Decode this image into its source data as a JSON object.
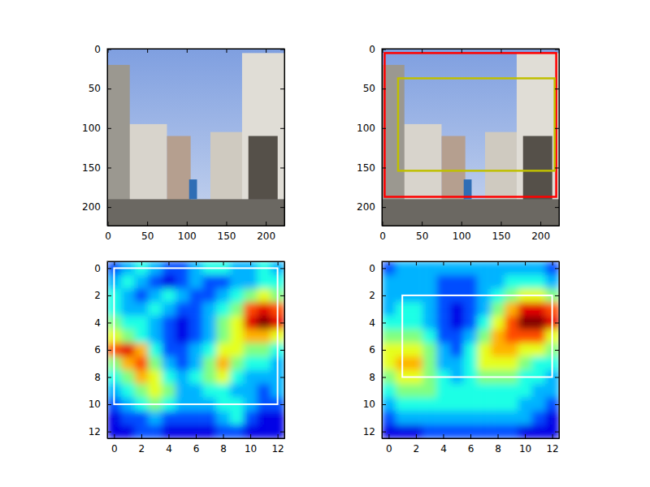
{
  "chart_data": [
    {
      "type": "image",
      "xlim": [
        -0.5,
        223.5
      ],
      "ylim": [
        223.5,
        -0.5
      ],
      "xticks": [
        0,
        50,
        100,
        150,
        200
      ],
      "yticks": [
        0,
        50,
        100,
        150,
        200
      ],
      "boxes": []
    },
    {
      "type": "image",
      "xlim": [
        -0.5,
        223.5
      ],
      "ylim": [
        223.5,
        -0.5
      ],
      "xticks": [
        0,
        50,
        100,
        150,
        200
      ],
      "yticks": [
        0,
        50,
        100,
        150,
        200
      ],
      "boxes": [
        {
          "color": "#ff0000",
          "x0": 3,
          "y0": 5,
          "x1": 220,
          "y1": 187
        },
        {
          "color": "#bfbf00",
          "x0": 20,
          "y0": 37,
          "x1": 218,
          "y1": 154
        }
      ]
    },
    {
      "type": "heatmap",
      "xlim": [
        -0.5,
        12.5
      ],
      "ylim": [
        12.5,
        -0.5
      ],
      "xticks": [
        0,
        2,
        4,
        6,
        8,
        10,
        12
      ],
      "yticks": [
        0,
        2,
        4,
        6,
        8,
        10,
        12
      ],
      "zlim": [
        0,
        1
      ],
      "cells": [
        [
          0.2,
          0.3,
          0.4,
          0.3,
          0.2,
          0.2,
          0.3,
          0.4,
          0.4,
          0.3,
          0.3,
          0.4,
          0.3
        ],
        [
          0.3,
          0.4,
          0.3,
          0.2,
          0.1,
          0.2,
          0.3,
          0.2,
          0.2,
          0.3,
          0.3,
          0.4,
          0.4
        ],
        [
          0.4,
          0.3,
          0.2,
          0.3,
          0.4,
          0.3,
          0.2,
          0.2,
          0.3,
          0.4,
          0.5,
          0.6,
          0.5
        ],
        [
          0.4,
          0.3,
          0.3,
          0.4,
          0.3,
          0.2,
          0.2,
          0.3,
          0.4,
          0.5,
          0.8,
          0.9,
          0.8
        ],
        [
          0.5,
          0.4,
          0.4,
          0.3,
          0.2,
          0.1,
          0.2,
          0.3,
          0.5,
          0.6,
          0.9,
          1.0,
          0.9
        ],
        [
          0.6,
          0.5,
          0.4,
          0.3,
          0.2,
          0.1,
          0.2,
          0.3,
          0.5,
          0.6,
          0.7,
          0.7,
          0.6
        ],
        [
          0.8,
          0.9,
          0.7,
          0.4,
          0.2,
          0.2,
          0.3,
          0.4,
          0.6,
          0.6,
          0.5,
          0.5,
          0.4
        ],
        [
          0.5,
          0.7,
          0.8,
          0.5,
          0.3,
          0.2,
          0.3,
          0.5,
          0.7,
          0.5,
          0.4,
          0.4,
          0.3
        ],
        [
          0.4,
          0.5,
          0.7,
          0.6,
          0.4,
          0.3,
          0.4,
          0.5,
          0.6,
          0.4,
          0.3,
          0.3,
          0.3
        ],
        [
          0.3,
          0.4,
          0.5,
          0.6,
          0.5,
          0.3,
          0.3,
          0.4,
          0.4,
          0.3,
          0.3,
          0.2,
          0.3
        ],
        [
          0.2,
          0.3,
          0.4,
          0.5,
          0.4,
          0.3,
          0.3,
          0.3,
          0.4,
          0.4,
          0.3,
          0.2,
          0.2
        ],
        [
          0.1,
          0.2,
          0.2,
          0.3,
          0.2,
          0.2,
          0.2,
          0.2,
          0.3,
          0.4,
          0.2,
          0.1,
          0.1
        ],
        [
          0.1,
          0.1,
          0.2,
          0.2,
          0.1,
          0.1,
          0.1,
          0.1,
          0.2,
          0.2,
          0.1,
          0.1,
          0.1
        ]
      ],
      "boxes": [
        {
          "color": "#ffffff",
          "x0": 0,
          "y0": 0,
          "x1": 12,
          "y1": 10
        }
      ]
    },
    {
      "type": "heatmap",
      "xlim": [
        -0.5,
        12.5
      ],
      "ylim": [
        12.5,
        -0.5
      ],
      "xticks": [
        0,
        2,
        4,
        6,
        8,
        10,
        12
      ],
      "yticks": [
        0,
        2,
        4,
        6,
        8,
        10,
        12
      ],
      "zlim": [
        0,
        1
      ],
      "cells": [
        [
          0.2,
          0.3,
          0.3,
          0.3,
          0.3,
          0.3,
          0.3,
          0.3,
          0.3,
          0.3,
          0.3,
          0.3,
          0.2
        ],
        [
          0.3,
          0.3,
          0.3,
          0.3,
          0.2,
          0.2,
          0.2,
          0.3,
          0.3,
          0.4,
          0.4,
          0.4,
          0.3
        ],
        [
          0.3,
          0.3,
          0.3,
          0.3,
          0.2,
          0.2,
          0.2,
          0.3,
          0.4,
          0.5,
          0.6,
          0.6,
          0.5
        ],
        [
          0.3,
          0.4,
          0.4,
          0.3,
          0.2,
          0.1,
          0.2,
          0.3,
          0.5,
          0.7,
          0.9,
          0.9,
          0.8
        ],
        [
          0.4,
          0.4,
          0.4,
          0.3,
          0.2,
          0.1,
          0.2,
          0.4,
          0.6,
          0.8,
          1.0,
          1.0,
          0.9
        ],
        [
          0.5,
          0.5,
          0.5,
          0.4,
          0.2,
          0.2,
          0.3,
          0.5,
          0.7,
          0.8,
          0.8,
          0.8,
          0.6
        ],
        [
          0.6,
          0.6,
          0.6,
          0.5,
          0.3,
          0.2,
          0.4,
          0.6,
          0.7,
          0.7,
          0.6,
          0.6,
          0.5
        ],
        [
          0.6,
          0.7,
          0.7,
          0.5,
          0.3,
          0.3,
          0.4,
          0.6,
          0.6,
          0.6,
          0.5,
          0.4,
          0.4
        ],
        [
          0.5,
          0.6,
          0.6,
          0.5,
          0.4,
          0.3,
          0.4,
          0.5,
          0.5,
          0.5,
          0.4,
          0.4,
          0.3
        ],
        [
          0.4,
          0.5,
          0.5,
          0.5,
          0.4,
          0.4,
          0.4,
          0.4,
          0.4,
          0.4,
          0.4,
          0.3,
          0.3
        ],
        [
          0.3,
          0.4,
          0.4,
          0.4,
          0.4,
          0.4,
          0.4,
          0.4,
          0.4,
          0.4,
          0.3,
          0.3,
          0.2
        ],
        [
          0.2,
          0.3,
          0.3,
          0.3,
          0.3,
          0.3,
          0.3,
          0.3,
          0.3,
          0.3,
          0.3,
          0.2,
          0.1
        ],
        [
          0.1,
          0.1,
          0.1,
          0.2,
          0.2,
          0.2,
          0.2,
          0.2,
          0.2,
          0.2,
          0.1,
          0.1,
          0.1
        ]
      ],
      "boxes": [
        {
          "color": "#ffffff",
          "x0": 1,
          "y0": 2,
          "x1": 12,
          "y1": 8
        }
      ]
    }
  ]
}
